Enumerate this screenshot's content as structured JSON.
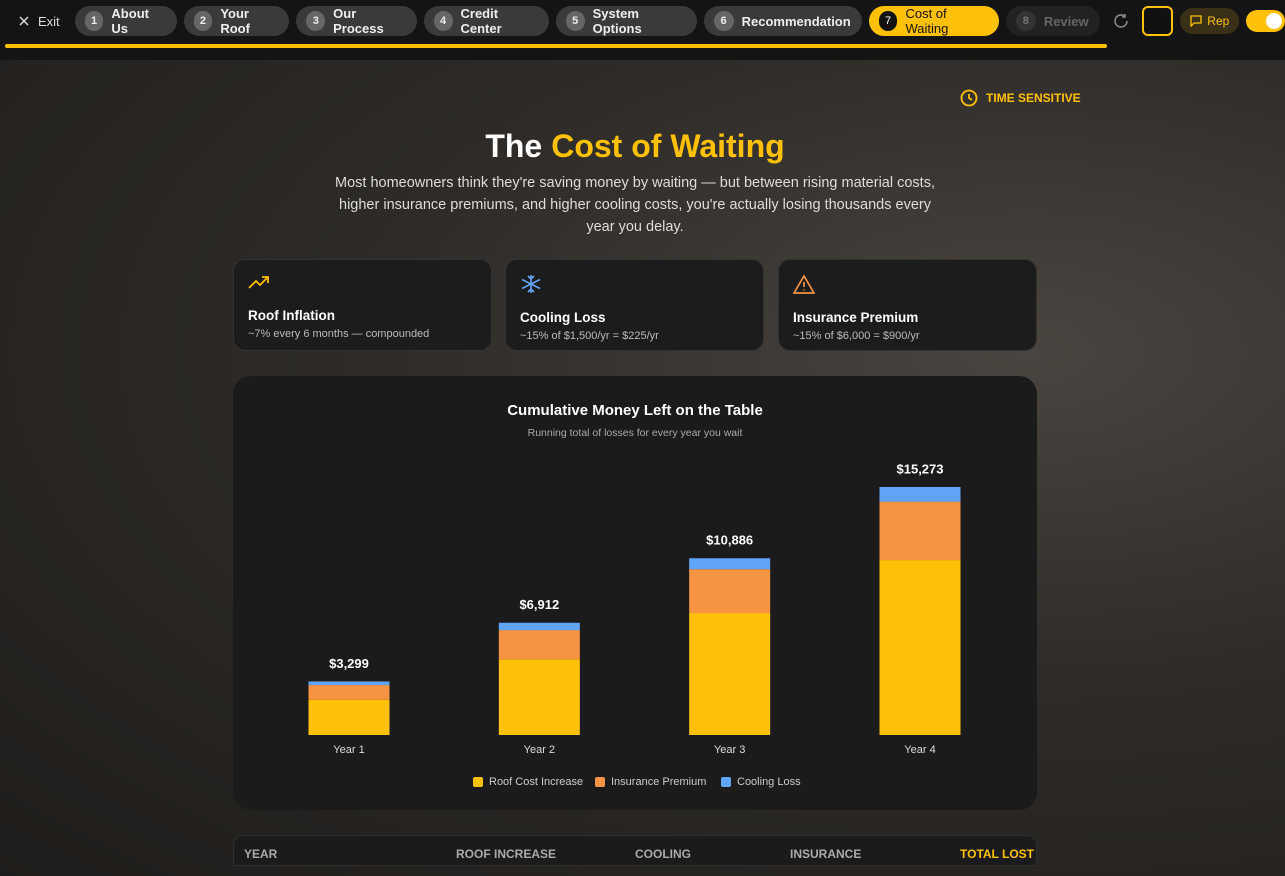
{
  "nav": {
    "exit": "Exit",
    "steps": [
      {
        "number": "1",
        "label": "About Us"
      },
      {
        "number": "2",
        "label": "Your Roof"
      },
      {
        "number": "3",
        "label": "Our Process"
      },
      {
        "number": "4",
        "label": "Credit Center"
      },
      {
        "number": "5",
        "label": "System Options"
      },
      {
        "number": "6",
        "label": "Recommendation"
      },
      {
        "number": "7",
        "label": "Cost of Waiting"
      },
      {
        "number": "8",
        "label": "Review"
      }
    ],
    "rep": "Rep"
  },
  "header": {
    "badge": "TIME SENSITIVE",
    "title_start": "The",
    "title_highlight": "Cost of Waiting",
    "subtitle": "Most homeowners think they're saving money by waiting — but between rising material costs, higher insurance premiums, and higher cooling costs, you're actually losing thousands every year you delay."
  },
  "cards": [
    {
      "title": "Roof Inflation",
      "detail": "~7% every 6 months — compounded"
    },
    {
      "title": "Cooling Loss",
      "detail": "~15% of $1,500/yr = $225/yr"
    },
    {
      "title": "Insurance Premium",
      "detail": "~15% of $6,000 = $900/yr"
    }
  ],
  "chart_data": {
    "type": "bar",
    "stacked": true,
    "title": "Cumulative Money Left on the Table",
    "subtitle": "Running total of losses for every year you wait",
    "categories": [
      "Year 1",
      "Year 2",
      "Year 3",
      "Year 4"
    ],
    "series": [
      {
        "name": "Roof Cost Increase",
        "color": "#FFC107",
        "values": [
          2174,
          4662,
          7511,
          10773
        ]
      },
      {
        "name": "Insurance Premium",
        "color": "#F79443",
        "values": [
          900,
          1800,
          2700,
          3600
        ]
      },
      {
        "name": "Cooling Loss",
        "color": "#60A5FA",
        "values": [
          225,
          450,
          675,
          900
        ]
      }
    ],
    "totals": {
      "values": [
        3299,
        6912,
        10886,
        15273
      ],
      "value_labels": [
        "$3,299",
        "$6,912",
        "$10,886",
        "$15,273"
      ]
    }
  },
  "table": {
    "headers": [
      "YEAR",
      "ROOF INCREASE",
      "COOLING",
      "INSURANCE",
      "TOTAL LOST"
    ]
  }
}
